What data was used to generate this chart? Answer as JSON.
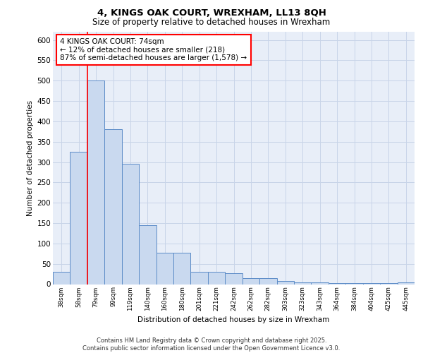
{
  "title1": "4, KINGS OAK COURT, WREXHAM, LL13 8QH",
  "title2": "Size of property relative to detached houses in Wrexham",
  "xlabel": "Distribution of detached houses by size in Wrexham",
  "ylabel": "Number of detached properties",
  "bar_labels": [
    "38sqm",
    "58sqm",
    "79sqm",
    "99sqm",
    "119sqm",
    "140sqm",
    "160sqm",
    "180sqm",
    "201sqm",
    "221sqm",
    "242sqm",
    "262sqm",
    "282sqm",
    "303sqm",
    "323sqm",
    "343sqm",
    "364sqm",
    "384sqm",
    "404sqm",
    "425sqm",
    "445sqm"
  ],
  "bar_values": [
    30,
    325,
    500,
    380,
    295,
    145,
    77,
    77,
    30,
    30,
    27,
    15,
    15,
    7,
    5,
    4,
    3,
    2,
    2,
    2,
    5
  ],
  "bar_color": "#c9d9ef",
  "bar_edge_color": "#5b8bc7",
  "bar_edge_width": 0.7,
  "property_line_color": "red",
  "annotation_text": "4 KINGS OAK COURT: 74sqm\n← 12% of detached houses are smaller (218)\n87% of semi-detached houses are larger (1,578) →",
  "annotation_box_color": "white",
  "annotation_box_edge_color": "red",
  "grid_color": "#c8d4e8",
  "background_color": "#e8eef8",
  "ylim": [
    0,
    620
  ],
  "yticks": [
    0,
    50,
    100,
    150,
    200,
    250,
    300,
    350,
    400,
    450,
    500,
    550,
    600
  ],
  "footer": "Contains HM Land Registry data © Crown copyright and database right 2025.\nContains public sector information licensed under the Open Government Licence v3.0.",
  "line_x_index": 1.5
}
